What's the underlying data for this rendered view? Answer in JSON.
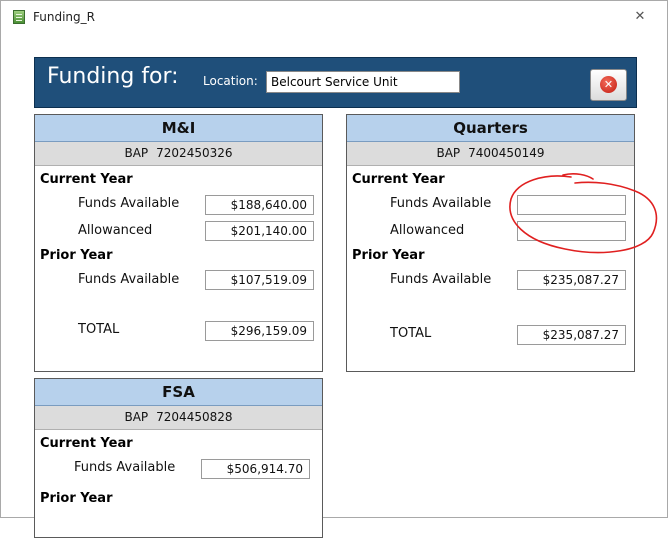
{
  "window": {
    "title": "Funding_R"
  },
  "header": {
    "title": "Funding for:",
    "location_label": "Location:",
    "location_value": "Belcourt Service Unit"
  },
  "panels": {
    "mi": {
      "title": "M&I",
      "bap_label": "BAP",
      "bap_number": "7202450326",
      "current_year_label": "Current Year",
      "funds_available_label": "Funds Available",
      "funds_available_value": "$188,640.00",
      "allowanced_label": "Allowanced",
      "allowanced_value": "$201,140.00",
      "prior_year_label": "Prior Year",
      "prior_funds_label": "Funds Available",
      "prior_funds_value": "$107,519.09",
      "total_label": "TOTAL",
      "total_value": "$296,159.09"
    },
    "quarters": {
      "title": "Quarters",
      "bap_label": "BAP",
      "bap_number": "7400450149",
      "current_year_label": "Current Year",
      "funds_available_label": "Funds Available",
      "funds_available_value": "",
      "allowanced_label": "Allowanced",
      "allowanced_value": "",
      "prior_year_label": "Prior Year",
      "prior_funds_label": "Funds Available",
      "prior_funds_value": "$235,087.27",
      "total_label": "TOTAL",
      "total_value": "$235,087.27"
    },
    "fsa": {
      "title": "FSA",
      "bap_label": "BAP",
      "bap_number": "7204450828",
      "current_year_label": "Current Year",
      "funds_available_label": "Funds Available",
      "funds_available_value": "$506,914.70",
      "prior_year_label": "Prior Year"
    }
  },
  "colors": {
    "header_bg": "#1f4f7a",
    "panel_head_bg": "#b7d1ec",
    "panel_sub_bg": "#dcdcdc",
    "annotation": "#e02020"
  }
}
